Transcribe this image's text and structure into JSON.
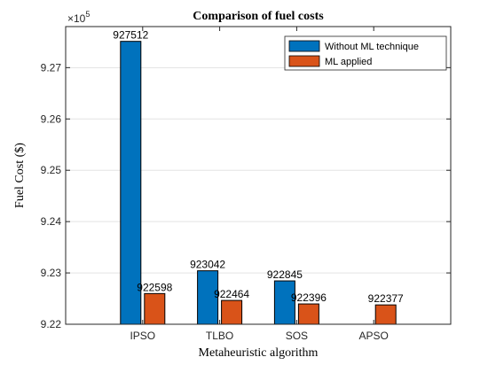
{
  "chart_data": {
    "type": "bar",
    "title": "Comparison of fuel costs",
    "xlabel": "Metaheuristic algorithm",
    "ylabel": "Fuel Cost ($)",
    "categories": [
      "IPSO",
      "TLBO",
      "SOS",
      "APSO"
    ],
    "series": [
      {
        "name": "Without ML technique",
        "color": "#0072BD",
        "values": [
          927512,
          923042,
          922845,
          922000
        ],
        "labels": [
          "927512",
          "923042",
          "922845",
          ""
        ]
      },
      {
        "name": "ML applied",
        "color": "#D95319",
        "values": [
          922598,
          922464,
          922396,
          922377
        ],
        "labels": [
          "922598",
          "922464",
          "922396",
          "922377"
        ]
      }
    ],
    "ylim": [
      922000,
      927800
    ],
    "yticks": [
      9.22,
      9.23,
      9.24,
      9.25,
      9.26,
      9.27
    ],
    "yticklabels": [
      "9.22",
      "9.23",
      "9.24",
      "9.25",
      "9.26",
      "9.27"
    ],
    "y_multiplier_base": "×10",
    "y_multiplier_exp": "5",
    "grid": true,
    "legend_position": "top-right"
  }
}
